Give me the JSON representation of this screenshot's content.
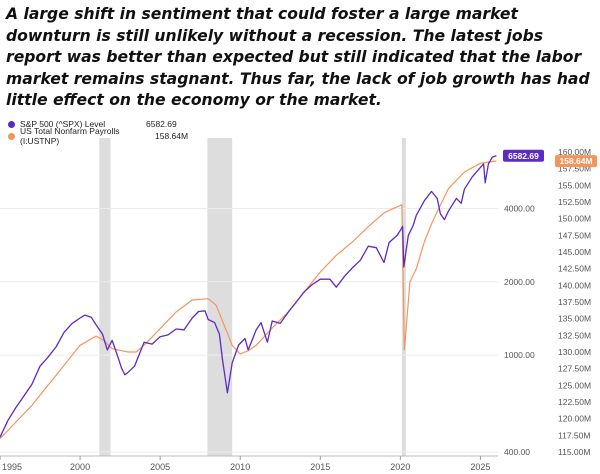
{
  "headline": "A large shift in sentiment that could foster a large market downturn is still unlikely without a recession. The latest jobs report was better than expected but still indicated that the labor market remains stagnant. Thus far, the lack of job growth has had little effect on the economy or the market.",
  "chart_data": {
    "type": "line",
    "title": "",
    "xlabel": "",
    "x_range": [
      1995,
      2026.1
    ],
    "x_ticks": [
      {
        "value": 1995,
        "label": "1995"
      },
      {
        "value": 2000,
        "label": "2000"
      },
      {
        "value": 2005,
        "label": "2005"
      },
      {
        "value": 2010,
        "label": "2010"
      },
      {
        "value": 2015,
        "label": "2015"
      },
      {
        "value": 2020,
        "label": "2020"
      },
      {
        "value": 2025,
        "label": "2025"
      }
    ],
    "left_axis": {
      "scale": "log",
      "ylim": [
        400,
        7500
      ],
      "tick_labels": [
        "400.00",
        "1000.00",
        "2000.00",
        "4000.00"
      ]
    },
    "right_axis": {
      "scale": "linear",
      "ylim": [
        115,
        161.5
      ],
      "ticks": [
        115,
        117.5,
        120,
        122.5,
        125,
        127.5,
        130,
        132.5,
        135,
        137.5,
        140,
        142.5,
        145,
        147.5,
        150,
        152.5,
        155,
        157.5,
        160
      ],
      "tick_labels": [
        "115.00M",
        "117.50M",
        "120.00M",
        "122.50M",
        "125.00M",
        "127.50M",
        "130.00M",
        "132.50M",
        "135.00M",
        "137.50M",
        "140.00M",
        "142.50M",
        "145.00M",
        "147.50M",
        "150.00M",
        "152.50M",
        "155.00M",
        "157.50M",
        "160.00M"
      ]
    },
    "recessions": [
      [
        2001.2,
        2001.9
      ],
      [
        2007.95,
        2009.5
      ],
      [
        2020.1,
        2020.35
      ]
    ],
    "series": [
      {
        "name": "S&P 500 (^SPX) Level",
        "legend_value": "6582.69",
        "end_label": "6582.69",
        "color": "#5b2bc2",
        "axis": "left",
        "x": [
          1995.0,
          1995.5,
          1996.0,
          1996.5,
          1997.0,
          1997.5,
          1998.0,
          1998.5,
          1999.0,
          1999.5,
          2000.0,
          2000.3,
          2000.7,
          2001.0,
          2001.4,
          2001.7,
          2002.0,
          2002.3,
          2002.6,
          2002.8,
          2003.0,
          2003.4,
          2004.0,
          2004.5,
          2005.0,
          2005.5,
          2006.0,
          2006.5,
          2007.0,
          2007.4,
          2007.8,
          2008.0,
          2008.4,
          2008.7,
          2008.9,
          2009.2,
          2009.5,
          2009.9,
          2010.3,
          2010.5,
          2011.0,
          2011.3,
          2011.7,
          2012.0,
          2012.5,
          2013.0,
          2013.5,
          2014.0,
          2014.5,
          2015.0,
          2015.6,
          2016.0,
          2016.5,
          2017.0,
          2017.5,
          2018.0,
          2018.5,
          2018.98,
          2019.3,
          2019.8,
          2020.0,
          2020.14,
          2020.22,
          2020.5,
          2020.8,
          2021.0,
          2021.5,
          2021.95,
          2022.3,
          2022.5,
          2022.75,
          2023.0,
          2023.5,
          2023.8,
          2024.0,
          2024.5,
          2025.0,
          2025.2,
          2025.3,
          2025.5,
          2025.75,
          2026.0
        ],
        "values": [
          460,
          540,
          610,
          680,
          760,
          900,
          980,
          1080,
          1240,
          1350,
          1420,
          1460,
          1430,
          1330,
          1220,
          1050,
          1150,
          1010,
          880,
          830,
          850,
          900,
          1130,
          1110,
          1190,
          1210,
          1280,
          1270,
          1420,
          1510,
          1520,
          1400,
          1360,
          1220,
          950,
          700,
          930,
          1100,
          1170,
          1050,
          1270,
          1360,
          1130,
          1380,
          1350,
          1500,
          1650,
          1820,
          1950,
          2050,
          2050,
          1900,
          2100,
          2280,
          2450,
          2800,
          2760,
          2400,
          2900,
          3100,
          3250,
          3380,
          2300,
          3100,
          3400,
          3750,
          4300,
          4700,
          4400,
          3800,
          3600,
          3900,
          4400,
          4200,
          4800,
          5400,
          5900,
          6100,
          5100,
          6100,
          6500,
          6582.69
        ]
      },
      {
        "name": "US Total Nonfarm Payrolls (I:USTNP)",
        "legend_value": "158.64M",
        "end_label": "158.64M",
        "color": "#f3955a",
        "axis": "right",
        "x": [
          1995.0,
          1996.0,
          1997.0,
          1998.0,
          1999.0,
          2000.0,
          2001.0,
          2001.5,
          2002.0,
          2003.0,
          2003.5,
          2004.0,
          2005.0,
          2006.0,
          2007.0,
          2008.0,
          2008.5,
          2009.0,
          2009.5,
          2010.0,
          2010.5,
          2011.0,
          2012.0,
          2013.0,
          2014.0,
          2015.0,
          2016.0,
          2017.0,
          2018.0,
          2019.0,
          2020.1,
          2020.25,
          2020.35,
          2020.6,
          2021.0,
          2021.5,
          2022.0,
          2022.5,
          2023.0,
          2024.0,
          2025.0,
          2025.5,
          2026.0
        ],
        "values": [
          117,
          119.5,
          122,
          125,
          128,
          131,
          132.4,
          131.7,
          130.5,
          130,
          130,
          131,
          133.5,
          136,
          137.8,
          138,
          137,
          134,
          131,
          129.7,
          130.2,
          131,
          133.6,
          136,
          139,
          142,
          144.5,
          146.5,
          148.8,
          150.9,
          152.1,
          130.3,
          133,
          140.5,
          142.5,
          146.5,
          149.5,
          152,
          154.5,
          157,
          158.3,
          158.5,
          158.64
        ]
      }
    ]
  }
}
